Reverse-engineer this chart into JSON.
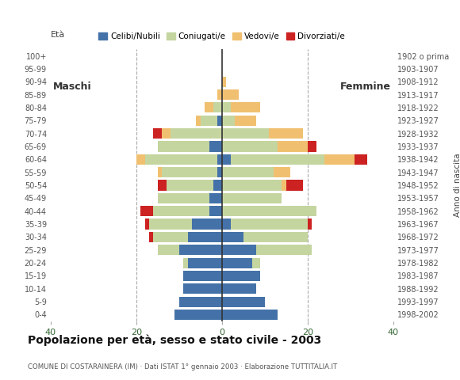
{
  "age_groups": [
    "0-4",
    "5-9",
    "10-14",
    "15-19",
    "20-24",
    "25-29",
    "30-34",
    "35-39",
    "40-44",
    "45-49",
    "50-54",
    "55-59",
    "60-64",
    "65-69",
    "70-74",
    "75-79",
    "80-84",
    "85-89",
    "90-94",
    "95-99",
    "100+"
  ],
  "birth_years": [
    "1998-2002",
    "1993-1997",
    "1988-1992",
    "1983-1987",
    "1978-1982",
    "1973-1977",
    "1968-1972",
    "1963-1967",
    "1958-1962",
    "1953-1957",
    "1948-1952",
    "1943-1947",
    "1938-1942",
    "1933-1937",
    "1928-1932",
    "1923-1927",
    "1918-1922",
    "1913-1917",
    "1908-1912",
    "1903-1907",
    "1902 o prima"
  ],
  "male": {
    "celibi": [
      11,
      10,
      9,
      9,
      8,
      10,
      8,
      7,
      3,
      3,
      2,
      1,
      1,
      3,
      0,
      1,
      0,
      0,
      0,
      0,
      0
    ],
    "coniugati": [
      0,
      0,
      0,
      0,
      1,
      5,
      8,
      10,
      13,
      12,
      11,
      13,
      17,
      12,
      12,
      4,
      2,
      0,
      0,
      0,
      0
    ],
    "vedovi": [
      0,
      0,
      0,
      0,
      0,
      0,
      0,
      0,
      0,
      0,
      0,
      1,
      2,
      0,
      2,
      1,
      2,
      1,
      0,
      0,
      0
    ],
    "divorziati": [
      0,
      0,
      0,
      0,
      0,
      0,
      1,
      1,
      3,
      0,
      2,
      0,
      0,
      0,
      2,
      0,
      0,
      0,
      0,
      0,
      0
    ]
  },
  "female": {
    "nubili": [
      13,
      10,
      8,
      9,
      7,
      8,
      5,
      2,
      0,
      0,
      0,
      0,
      2,
      0,
      0,
      0,
      0,
      0,
      0,
      0,
      0
    ],
    "coniugate": [
      0,
      0,
      0,
      0,
      2,
      13,
      15,
      18,
      22,
      14,
      14,
      12,
      22,
      13,
      11,
      3,
      2,
      0,
      0,
      0,
      0
    ],
    "vedove": [
      0,
      0,
      0,
      0,
      0,
      0,
      0,
      0,
      0,
      0,
      1,
      4,
      7,
      7,
      8,
      5,
      7,
      4,
      1,
      0,
      0
    ],
    "divorziate": [
      0,
      0,
      0,
      0,
      0,
      0,
      0,
      1,
      0,
      0,
      4,
      0,
      3,
      2,
      0,
      0,
      0,
      0,
      0,
      0,
      0
    ]
  },
  "colors": {
    "celibi": "#4472a8",
    "coniugati": "#c5d5a0",
    "vedovi": "#f0c070",
    "divorziati": "#cc2222"
  },
  "title": "Popolazione per età, sesso e stato civile - 2003",
  "subtitle": "COMUNE DI COSTARAINERA (IM) · Dati ISTAT 1° gennaio 2003 · Elaborazione TUTTITALIA.IT",
  "xlabel_left": "Maschi",
  "xlabel_right": "Femmine",
  "ylabel": "Età",
  "ylabel_right": "Anno di nascita",
  "xlim": 40,
  "legend_labels": [
    "Celibi/Nubili",
    "Coniugati/e",
    "Vedovi/e",
    "Divorziati/e"
  ],
  "background_color": "#ffffff",
  "bar_height": 0.8
}
